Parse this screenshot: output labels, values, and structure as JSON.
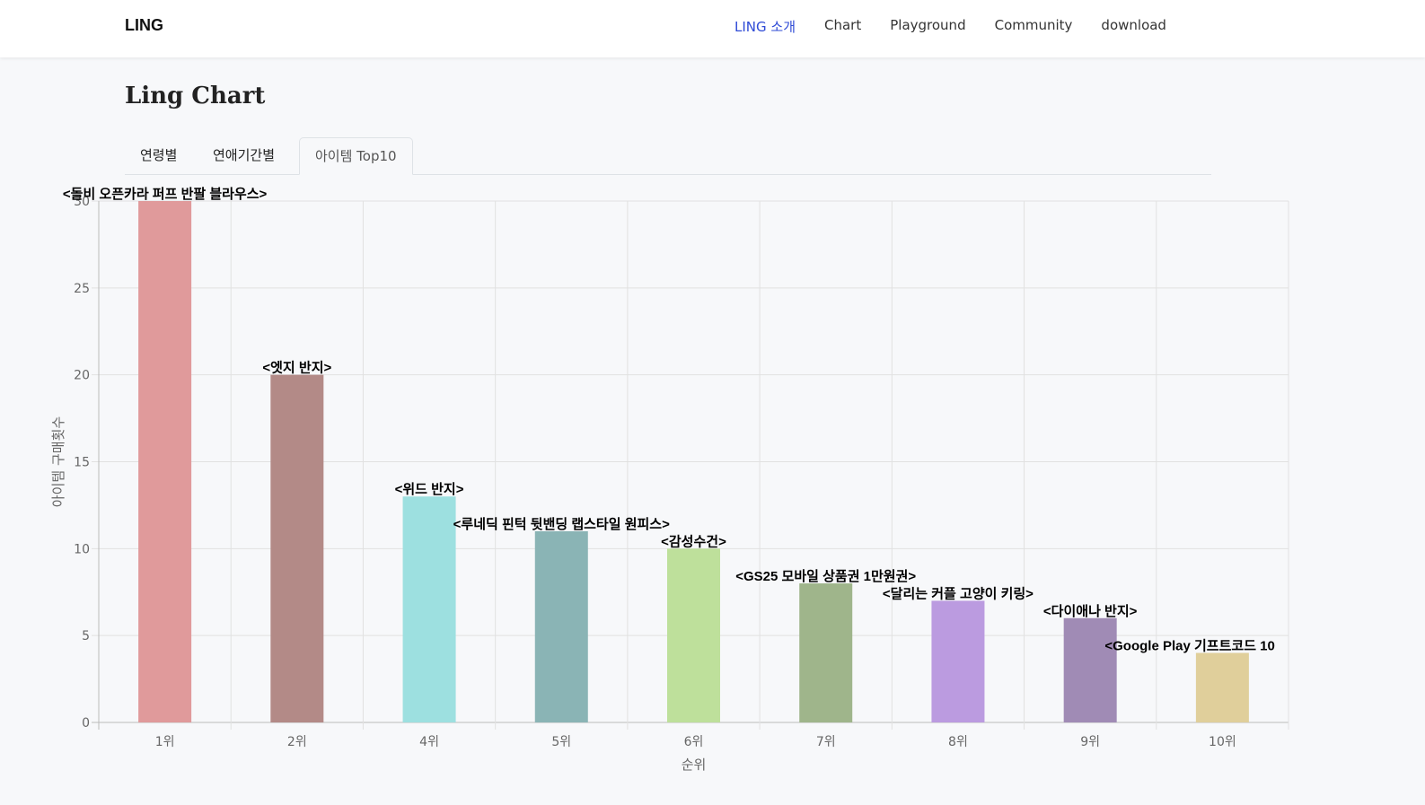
{
  "navbar": {
    "brand": "LING",
    "links": [
      {
        "label": "LING 소개",
        "active": true
      },
      {
        "label": "Chart",
        "active": false
      },
      {
        "label": "Playground",
        "active": false
      },
      {
        "label": "Community",
        "active": false
      },
      {
        "label": "download",
        "active": false
      }
    ],
    "active_color": "#2f4bd6"
  },
  "page": {
    "title": "Ling Chart",
    "tabs": [
      {
        "label": "연령별",
        "active": false
      },
      {
        "label": "연애기간별",
        "active": false
      },
      {
        "label": "아이템 Top10",
        "active": true
      }
    ]
  },
  "chart_data": {
    "type": "bar",
    "categories": [
      "1위",
      "2위",
      "4위",
      "5위",
      "6위",
      "7위",
      "8위",
      "9위",
      "10위"
    ],
    "values": [
      30,
      20,
      13,
      11,
      10,
      8,
      7,
      6,
      4
    ],
    "data_labels": [
      "<돌비 오픈카라 퍼프 반팔 블라우스>",
      "<엣지 반지>",
      "<위드 반지>",
      "<루네딕 핀턱 뒷밴딩 랩스타일 원피스>",
      "<감성수건>",
      "<GS25 모바일 상품권 1만원권>",
      "<달리는 커플 고양이 키링>",
      "<다이애나 반지>",
      "<Google Play 기프트코드 10"
    ],
    "colors": [
      "#e09a9b",
      "#b38a87",
      "#9de0e0",
      "#8ab4b5",
      "#bee09b",
      "#9fb58b",
      "#bb9be0",
      "#a08bb5",
      "#e0cf9b"
    ],
    "xlabel": "순위",
    "ylabel": "아이템 구매횟수",
    "ylim": [
      0,
      30
    ],
    "yticks": [
      0,
      5,
      10,
      15,
      20,
      25,
      30
    ],
    "grid": true
  }
}
